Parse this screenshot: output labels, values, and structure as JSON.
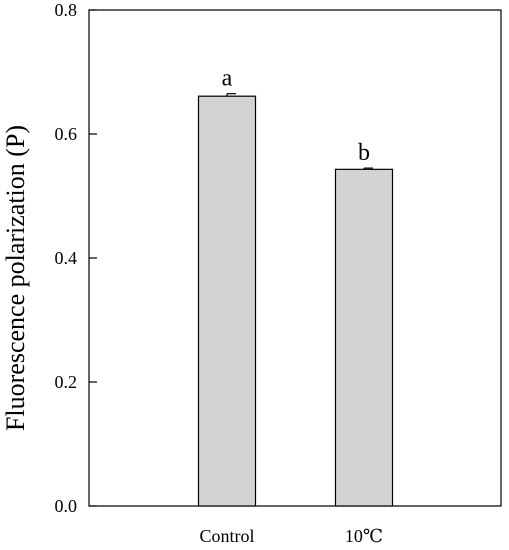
{
  "chart_data": {
    "type": "bar",
    "categories": [
      "Control",
      "10℃"
    ],
    "values": [
      0.661,
      0.543
    ],
    "errors": [
      0.004,
      0.002
    ],
    "significance_labels": [
      "a",
      "b"
    ],
    "ylabel": "Fluorescence polarization (P)",
    "xlabel": "",
    "ylim": [
      0.0,
      0.8
    ],
    "yticks": [
      "0.0",
      "0.2",
      "0.4",
      "0.6",
      "0.8"
    ],
    "ytick_values": [
      0.0,
      0.2,
      0.4,
      0.6,
      0.8
    ],
    "bar_color": "#d3d3d3",
    "edge_color": "#000000",
    "grid": false,
    "legend": "none"
  }
}
